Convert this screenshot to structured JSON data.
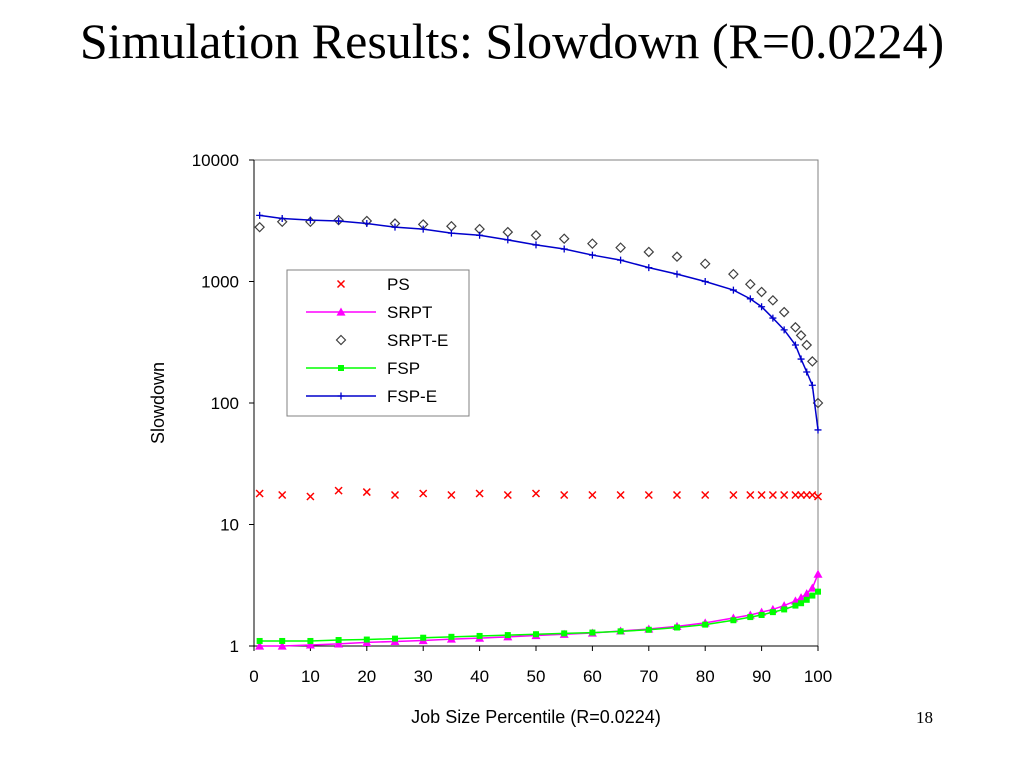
{
  "slide": {
    "title": "Simulation Results: Slowdown (R=0.0224)",
    "page_number": "18"
  },
  "chart_data": {
    "type": "scatter",
    "xlabel": "Job Size Percentile (R=0.0224)",
    "ylabel": "Slowdown",
    "xlim": [
      0,
      100
    ],
    "ylim": [
      1,
      10000
    ],
    "y_scale": "log",
    "x_ticks": [
      "0",
      "10",
      "20",
      "30",
      "40",
      "50",
      "60",
      "70",
      "80",
      "90",
      "100"
    ],
    "y_ticks": [
      "1",
      "10",
      "100",
      "1000",
      "10000"
    ],
    "grid": false,
    "legend_position": "inside-upper-left",
    "x": [
      1,
      5,
      10,
      15,
      20,
      25,
      30,
      35,
      40,
      45,
      50,
      55,
      60,
      65,
      70,
      75,
      80,
      85,
      88,
      90,
      92,
      94,
      96,
      97,
      98,
      99,
      100
    ],
    "series": [
      {
        "name": "PS",
        "color": "#ff0000",
        "marker": "x",
        "values": [
          18,
          17.5,
          17,
          19,
          18.5,
          17.5,
          18,
          17.5,
          18,
          17.5,
          18,
          17.5,
          17.5,
          17.5,
          17.5,
          17.5,
          17.5,
          17.5,
          17.5,
          17.5,
          17.5,
          17.5,
          17.5,
          17.5,
          17.5,
          17.5,
          17
        ]
      },
      {
        "name": "SRPT",
        "color": "#ff00ff",
        "marker": "triangle",
        "values": [
          1.0,
          1.0,
          1.02,
          1.04,
          1.07,
          1.09,
          1.11,
          1.14,
          1.16,
          1.19,
          1.22,
          1.25,
          1.28,
          1.33,
          1.38,
          1.45,
          1.55,
          1.7,
          1.8,
          1.9,
          2.0,
          2.15,
          2.35,
          2.5,
          2.7,
          3.0,
          3.9
        ]
      },
      {
        "name": "SRPT-E",
        "color": "#404040",
        "marker": "diamond",
        "values": [
          2800,
          3100,
          3100,
          3200,
          3150,
          3000,
          2950,
          2850,
          2700,
          2550,
          2400,
          2250,
          2050,
          1900,
          1750,
          1600,
          1400,
          1150,
          950,
          820,
          700,
          560,
          420,
          360,
          300,
          220,
          100
        ]
      },
      {
        "name": "FSP",
        "color": "#00ff00",
        "marker": "square",
        "values": [
          1.1,
          1.1,
          1.1,
          1.12,
          1.13,
          1.15,
          1.17,
          1.19,
          1.21,
          1.23,
          1.25,
          1.27,
          1.29,
          1.32,
          1.36,
          1.42,
          1.5,
          1.63,
          1.73,
          1.8,
          1.9,
          2.0,
          2.15,
          2.25,
          2.4,
          2.6,
          2.8
        ]
      },
      {
        "name": "FSP-E",
        "color": "#0000cc",
        "marker": "plus",
        "values": [
          3500,
          3300,
          3200,
          3150,
          3000,
          2800,
          2700,
          2500,
          2400,
          2200,
          2000,
          1850,
          1650,
          1500,
          1300,
          1150,
          1000,
          850,
          720,
          620,
          500,
          400,
          300,
          230,
          180,
          140,
          60
        ]
      }
    ]
  }
}
